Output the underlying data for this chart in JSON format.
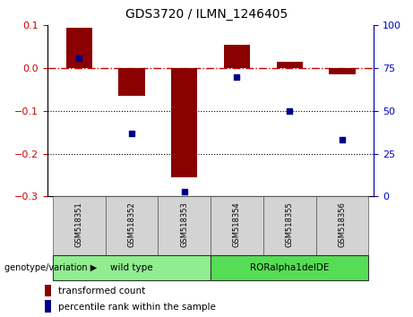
{
  "title": "GDS3720 / ILMN_1246405",
  "samples": [
    "GSM518351",
    "GSM518352",
    "GSM518353",
    "GSM518354",
    "GSM518355",
    "GSM518356"
  ],
  "groups": [
    {
      "label": "wild type",
      "indices": [
        0,
        1,
        2
      ],
      "color": "#90ee90"
    },
    {
      "label": "RORalpha1delDE",
      "indices": [
        3,
        4,
        5
      ],
      "color": "#55dd55"
    }
  ],
  "red_bars": [
    0.095,
    -0.065,
    -0.255,
    0.055,
    0.015,
    -0.015
  ],
  "blue_dots_pct": [
    81,
    37,
    3,
    70,
    50,
    33
  ],
  "ylim_left": [
    -0.3,
    0.1
  ],
  "ylim_right": [
    0,
    100
  ],
  "left_yticks": [
    -0.3,
    -0.2,
    -0.1,
    0.0,
    0.1
  ],
  "right_yticks": [
    0,
    25,
    50,
    75,
    100
  ],
  "bar_color": "#8b0000",
  "dot_color": "#00008b",
  "hline_color": "#cc0000",
  "grid_lines": [
    -0.1,
    -0.2
  ],
  "genotype_label": "genotype/variation",
  "legend_red": "transformed count",
  "legend_blue": "percentile rank within the sample",
  "background_color": "#ffffff",
  "bar_width": 0.5
}
